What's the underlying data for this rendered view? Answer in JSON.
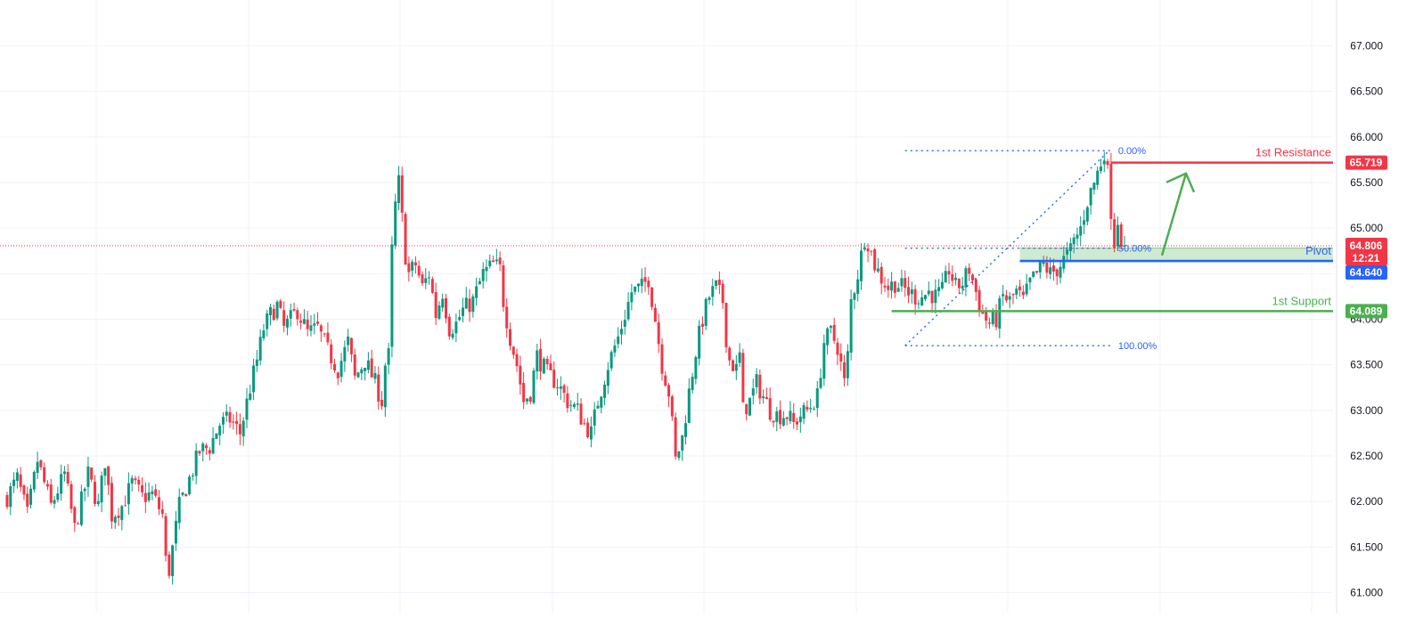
{
  "chart_data": {
    "type": "candlestick",
    "y_ticks": [
      "67.000",
      "66.500",
      "66.000",
      "65.500",
      "65.000",
      "64.500",
      "64.000",
      "63.500",
      "63.000",
      "62.500",
      "62.000",
      "61.500",
      "61.000"
    ],
    "ylim": [
      61.0,
      67.0
    ],
    "grid": true,
    "current_price": {
      "value": 64.806,
      "label": "64.806",
      "countdown": "12:21",
      "color": "#f23645"
    },
    "levels": [
      {
        "name": "1st Resistance",
        "value": 65.719,
        "label": "65.719",
        "color": "#f23645"
      },
      {
        "name": "Pivot",
        "value": 64.64,
        "label": "64.640",
        "color": "#2962ff"
      },
      {
        "name": "1st Support",
        "value": 64.089,
        "label": "64.089",
        "color": "#4caf50"
      }
    ],
    "pivot_zone": {
      "low": 64.62,
      "high": 64.78,
      "color": "#c8e6c9"
    },
    "fibonacci": [
      {
        "label": "0.00%",
        "value": 65.85
      },
      {
        "label": "50.00%",
        "value": 64.78
      },
      {
        "label": "100.00%",
        "value": 63.71
      }
    ],
    "arrow": {
      "from_value": 64.7,
      "to_value": 65.6,
      "color": "#4caf50"
    },
    "colors": {
      "up": "#089981",
      "down": "#f23645",
      "grid": "#f0f3fa",
      "axis_text": "#131722"
    },
    "path": [
      [
        0,
        62.05
      ],
      [
        3,
        62.25
      ],
      [
        6,
        61.85
      ],
      [
        9,
        62.45
      ],
      [
        13,
        61.95
      ],
      [
        17,
        62.3
      ],
      [
        20,
        61.7
      ],
      [
        24,
        62.3
      ],
      [
        27,
        61.95
      ],
      [
        29,
        62.45
      ],
      [
        31,
        61.85
      ],
      [
        34,
        61.95
      ],
      [
        37,
        62.2
      ],
      [
        40,
        62.05
      ],
      [
        43,
        62.08
      ],
      [
        46,
        61.85
      ],
      [
        47,
        61.35
      ],
      [
        48,
        61.25
      ],
      [
        51,
        61.95
      ],
      [
        54,
        62.25
      ],
      [
        57,
        62.55
      ],
      [
        60,
        62.6
      ],
      [
        63,
        62.85
      ],
      [
        66,
        62.9
      ],
      [
        69,
        62.75
      ],
      [
        72,
        63.25
      ],
      [
        74,
        63.55
      ],
      [
        76,
        63.9
      ],
      [
        78,
        64.05
      ],
      [
        80,
        64.15
      ],
      [
        82,
        63.9
      ],
      [
        84,
        64.0
      ],
      [
        86,
        64.1
      ],
      [
        89,
        63.85
      ],
      [
        92,
        63.9
      ],
      [
        95,
        63.65
      ],
      [
        98,
        63.45
      ],
      [
        101,
        63.75
      ],
      [
        103,
        63.35
      ],
      [
        106,
        63.55
      ],
      [
        109,
        63.3
      ],
      [
        111,
        63.1
      ],
      [
        112,
        63.5
      ],
      [
        113,
        63.6
      ],
      [
        114,
        64.75
      ],
      [
        115,
        65.25
      ],
      [
        116,
        65.5
      ],
      [
        117,
        65.1
      ],
      [
        118,
        64.7
      ],
      [
        119,
        64.5
      ],
      [
        121,
        64.6
      ],
      [
        123,
        64.35
      ],
      [
        125,
        64.5
      ],
      [
        127,
        64.05
      ],
      [
        129,
        64.3
      ],
      [
        131,
        63.9
      ],
      [
        133,
        63.95
      ],
      [
        135,
        64.1
      ],
      [
        138,
        64.2
      ],
      [
        141,
        64.5
      ],
      [
        144,
        64.6
      ],
      [
        146,
        64.55
      ],
      [
        147,
        64.2
      ],
      [
        149,
        63.8
      ],
      [
        151,
        63.5
      ],
      [
        153,
        63.1
      ],
      [
        155,
        63.2
      ],
      [
        157,
        63.6
      ],
      [
        160,
        63.4
      ],
      [
        163,
        63.3
      ],
      [
        166,
        63.1
      ],
      [
        169,
        63.0
      ],
      [
        171,
        62.85
      ],
      [
        173,
        62.75
      ],
      [
        175,
        63.1
      ],
      [
        178,
        63.5
      ],
      [
        181,
        63.8
      ],
      [
        183,
        64.05
      ],
      [
        185,
        64.3
      ],
      [
        188,
        64.35
      ],
      [
        190,
        64.45
      ],
      [
        192,
        64.0
      ],
      [
        194,
        63.5
      ],
      [
        196,
        63.2
      ],
      [
        197,
        62.85
      ],
      [
        198,
        62.45
      ],
      [
        200,
        62.7
      ],
      [
        202,
        63.2
      ],
      [
        204,
        63.65
      ],
      [
        206,
        64.0
      ],
      [
        208,
        64.25
      ],
      [
        210,
        64.35
      ],
      [
        212,
        64.2
      ],
      [
        213,
        63.8
      ],
      [
        214,
        63.55
      ],
      [
        216,
        63.45
      ],
      [
        217,
        63.6
      ],
      [
        218,
        63.0
      ],
      [
        220,
        63.1
      ],
      [
        222,
        63.3
      ],
      [
        224,
        63.15
      ],
      [
        226,
        63.0
      ],
      [
        228,
        62.95
      ],
      [
        231,
        62.95
      ],
      [
        233,
        62.85
      ],
      [
        235,
        62.95
      ],
      [
        237,
        63.0
      ],
      [
        240,
        63.15
      ],
      [
        242,
        63.75
      ],
      [
        244,
        63.85
      ],
      [
        246,
        63.7
      ],
      [
        248,
        63.3
      ],
      [
        249,
        63.6
      ],
      [
        250,
        64.2
      ],
      [
        252,
        64.5
      ],
      [
        254,
        64.9
      ],
      [
        255,
        64.85
      ],
      [
        257,
        64.6
      ],
      [
        259,
        64.45
      ],
      [
        261,
        64.35
      ],
      [
        263,
        64.4
      ],
      [
        265,
        64.35
      ],
      [
        267,
        64.3
      ],
      [
        269,
        64.25
      ],
      [
        271,
        64.25
      ],
      [
        273,
        64.3
      ],
      [
        275,
        64.25
      ],
      [
        277,
        64.3
      ],
      [
        279,
        64.55
      ],
      [
        281,
        64.35
      ],
      [
        283,
        64.4
      ],
      [
        285,
        64.55
      ],
      [
        287,
        64.3
      ],
      [
        289,
        64.05
      ],
      [
        291,
        63.95
      ],
      [
        293,
        64.0
      ],
      [
        295,
        64.25
      ],
      [
        297,
        64.2
      ],
      [
        299,
        64.3
      ],
      [
        301,
        64.2
      ],
      [
        303,
        64.4
      ],
      [
        305,
        64.5
      ],
      [
        307,
        64.6
      ],
      [
        309,
        64.5
      ],
      [
        311,
        64.55
      ],
      [
        313,
        64.65
      ],
      [
        315,
        64.75
      ],
      [
        316,
        64.85
      ],
      [
        318,
        65.0
      ],
      [
        320,
        65.3
      ],
      [
        322,
        65.5
      ],
      [
        324,
        65.72
      ],
      [
        325,
        65.85
      ],
      [
        326,
        65.6
      ],
      [
        327,
        65.2
      ],
      [
        328,
        64.85
      ],
      [
        329,
        65.1
      ],
      [
        330,
        64.9
      ],
      [
        331,
        64.806
      ]
    ]
  },
  "fib_link": "dotted"
}
